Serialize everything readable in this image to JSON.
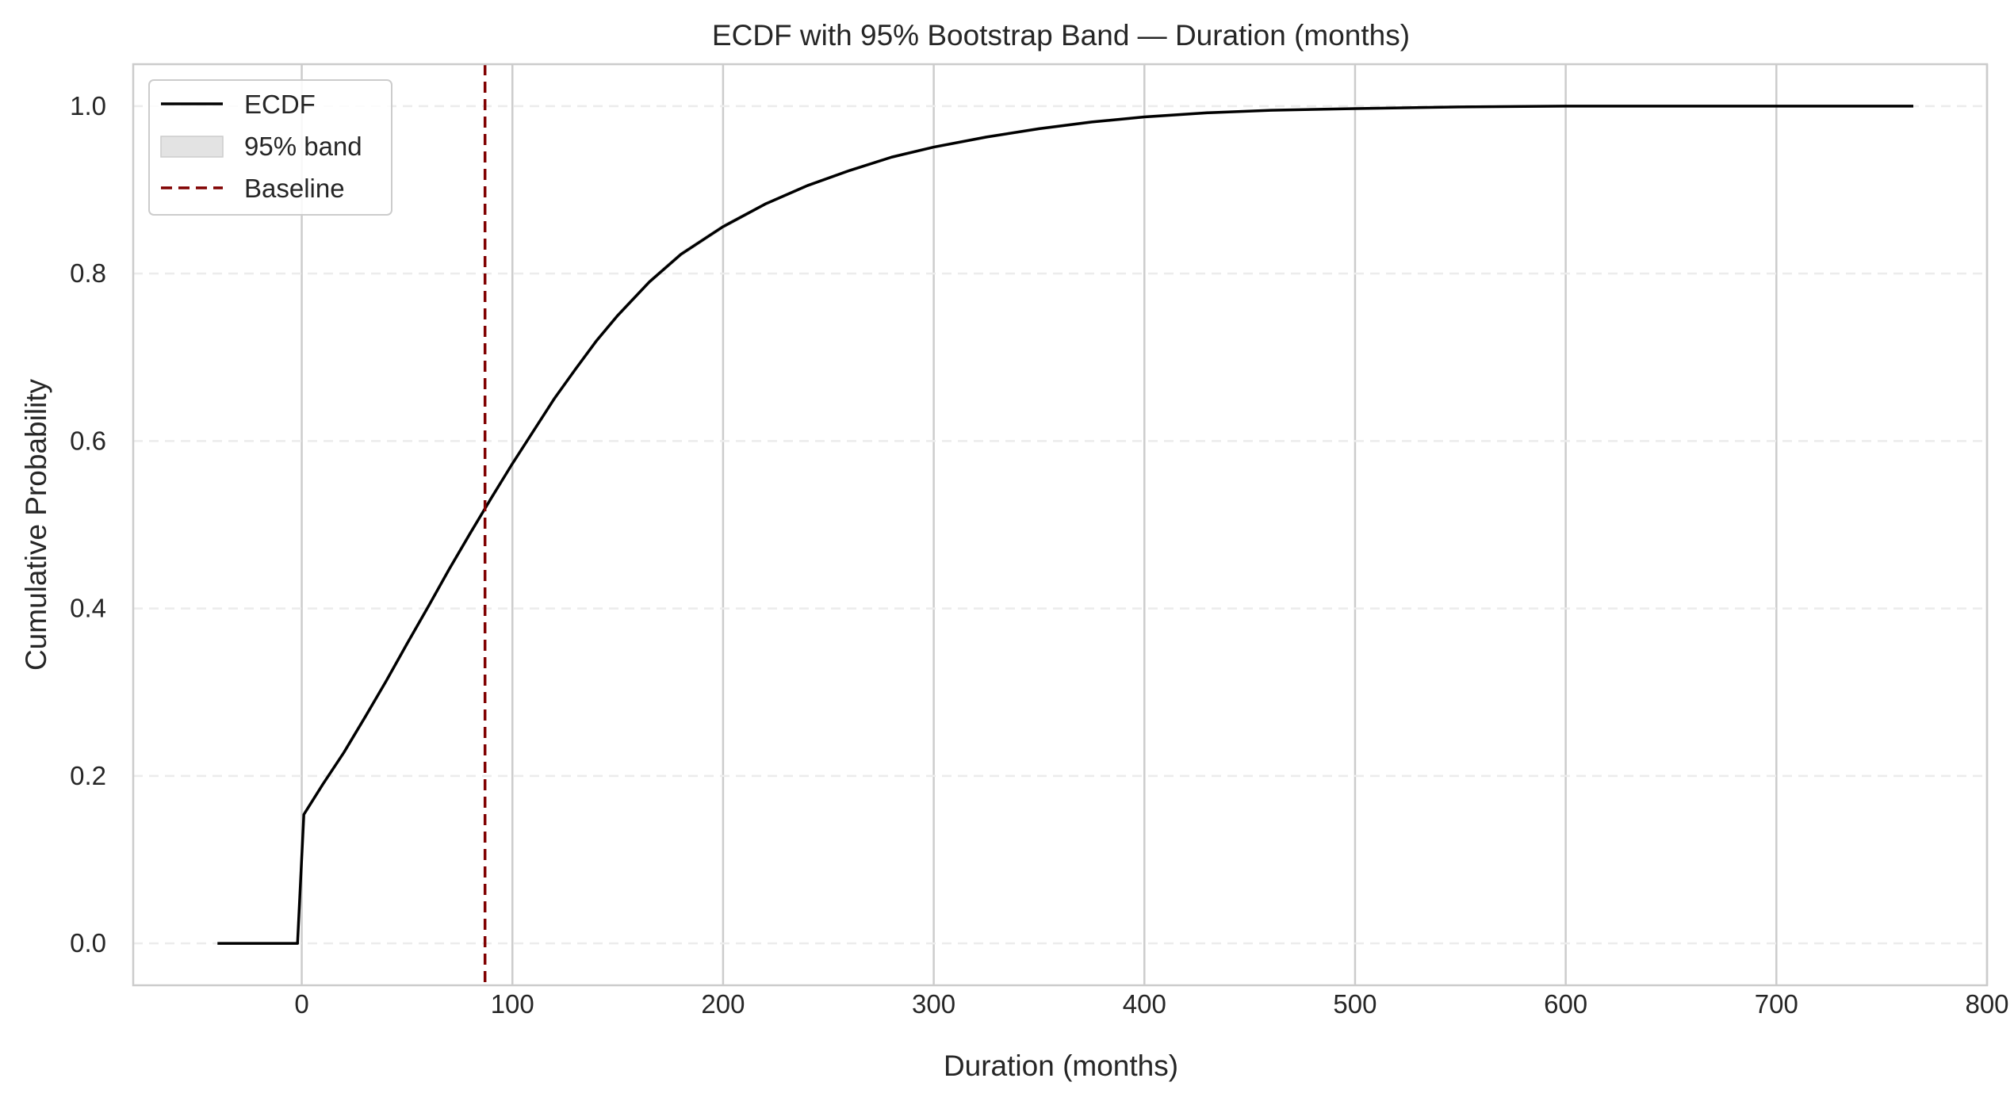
{
  "chart_data": {
    "type": "line",
    "title": "ECDF with 95% Bootstrap Band — Duration (months)",
    "xlabel": "Duration (months)",
    "ylabel": "Cumulative Probability",
    "xlim": [
      -80,
      800
    ],
    "ylim": [
      -0.05,
      1.05
    ],
    "x_ticks": [
      0,
      100,
      200,
      300,
      400,
      500,
      600,
      700,
      800
    ],
    "y_ticks": [
      0.0,
      0.2,
      0.4,
      0.6,
      0.8,
      1.0
    ],
    "x_tick_labels": [
      "0",
      "100",
      "200",
      "300",
      "400",
      "500",
      "600",
      "700",
      "800"
    ],
    "y_tick_labels": [
      "0.0",
      "0.2",
      "0.4",
      "0.6",
      "0.8",
      "1.0"
    ],
    "grid": {
      "x": true,
      "y": true,
      "y_style": "dashed"
    },
    "legend_position": "top-left",
    "legend": [
      {
        "label": "ECDF",
        "kind": "line"
      },
      {
        "label": "95% band",
        "kind": "patch"
      },
      {
        "label": "Baseline",
        "kind": "dashed-line"
      }
    ],
    "series": [
      {
        "name": "ECDF",
        "color": "#000000",
        "x": [
          -40,
          -2,
          1,
          10,
          20,
          30,
          40,
          50,
          60,
          70,
          80,
          90,
          100,
          110,
          120,
          130,
          140,
          150,
          165,
          180,
          200,
          220,
          240,
          260,
          280,
          300,
          325,
          350,
          375,
          400,
          430,
          460,
          500,
          550,
          600,
          700,
          765
        ],
        "y": [
          0.0,
          0.0,
          0.154,
          0.19,
          0.228,
          0.27,
          0.313,
          0.358,
          0.402,
          0.447,
          0.49,
          0.532,
          0.573,
          0.612,
          0.651,
          0.686,
          0.72,
          0.75,
          0.79,
          0.823,
          0.856,
          0.883,
          0.905,
          0.923,
          0.939,
          0.951,
          0.963,
          0.973,
          0.981,
          0.987,
          0.992,
          0.995,
          0.997,
          0.999,
          1.0,
          1.0,
          1.0
        ]
      }
    ],
    "band": {
      "name": "95% band",
      "color": "#e3e3e3",
      "x": [
        -40,
        -2,
        1,
        10,
        20,
        30,
        40,
        50,
        60,
        70,
        80,
        90,
        100,
        110,
        120,
        130,
        140,
        150,
        165,
        180,
        200,
        220,
        240,
        260,
        280,
        300,
        325,
        350,
        375,
        400,
        430,
        460,
        500,
        550,
        600,
        700,
        765
      ],
      "lower": [
        0.0,
        0.0,
        0.151,
        0.187,
        0.225,
        0.267,
        0.31,
        0.355,
        0.399,
        0.444,
        0.487,
        0.529,
        0.57,
        0.609,
        0.648,
        0.683,
        0.717,
        0.747,
        0.787,
        0.82,
        0.853,
        0.881,
        0.903,
        0.921,
        0.937,
        0.949,
        0.961,
        0.971,
        0.979,
        0.985,
        0.99,
        0.994,
        0.996,
        0.998,
        0.999,
        1.0,
        1.0
      ],
      "upper": [
        0.0,
        0.0,
        0.157,
        0.193,
        0.231,
        0.273,
        0.316,
        0.361,
        0.405,
        0.45,
        0.493,
        0.535,
        0.576,
        0.615,
        0.654,
        0.689,
        0.723,
        0.753,
        0.793,
        0.826,
        0.859,
        0.885,
        0.907,
        0.925,
        0.941,
        0.953,
        0.965,
        0.975,
        0.983,
        0.989,
        0.994,
        0.996,
        0.998,
        1.0,
        1.0,
        1.0,
        1.0
      ]
    },
    "baseline": {
      "name": "Baseline",
      "x": 87,
      "color": "#800000",
      "style": "dashed"
    }
  }
}
